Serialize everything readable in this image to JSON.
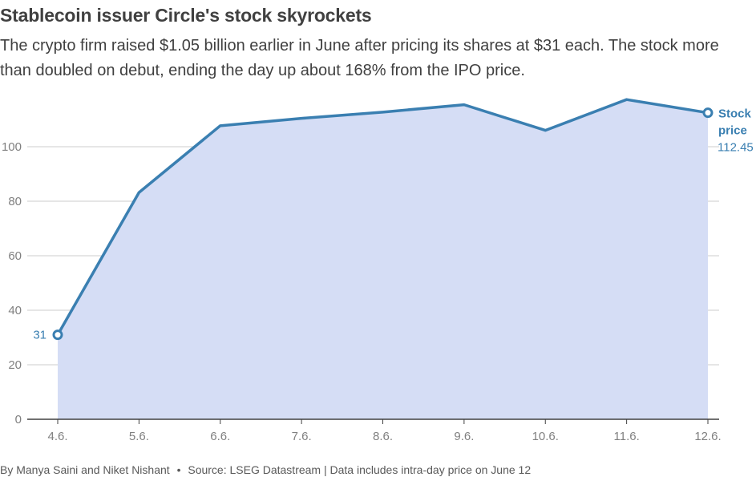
{
  "header": {
    "title": "Stablecoin issuer Circle's stock skyrockets",
    "subtitle": "The crypto firm raised $1.05 billion earlier in June after pricing its shares at $31 each. The stock more than doubled on debut, ending the day up about 168% from the IPO price."
  },
  "footer": {
    "byline": "By Manya Saini and Niket Nishant",
    "bullet": "•",
    "source": "Source: LSEG Datastream | Data includes intra-day price on June 12"
  },
  "colors": {
    "line": "#3a7fb1",
    "fill": "#d5ddf5",
    "grid": "#cccccc",
    "axis": "#404040",
    "tick": "#808080"
  },
  "chart_data": {
    "type": "area",
    "title": "Stablecoin issuer Circle's stock skyrockets",
    "xlabel": "",
    "ylabel": "",
    "categories": [
      "4.6.",
      "5.6.",
      "6.6.",
      "7.6.",
      "8.6.",
      "9.6.",
      "10.6.",
      "11.6.",
      "12.6."
    ],
    "x": [
      0,
      1,
      2,
      3,
      4,
      5,
      6,
      7,
      8
    ],
    "series": [
      {
        "name": "Stock price",
        "name_lines": [
          "Stock",
          "price"
        ],
        "values": [
          31,
          83.2,
          107.7,
          110.4,
          112.7,
          115.4,
          106,
          117.3,
          112.45
        ],
        "start_label": "31",
        "end_label": "112.45"
      }
    ],
    "ylim": [
      0,
      120
    ],
    "yticks": [
      0,
      20,
      40,
      60,
      80,
      100
    ],
    "grid": true,
    "legend": "end-of-line label"
  }
}
